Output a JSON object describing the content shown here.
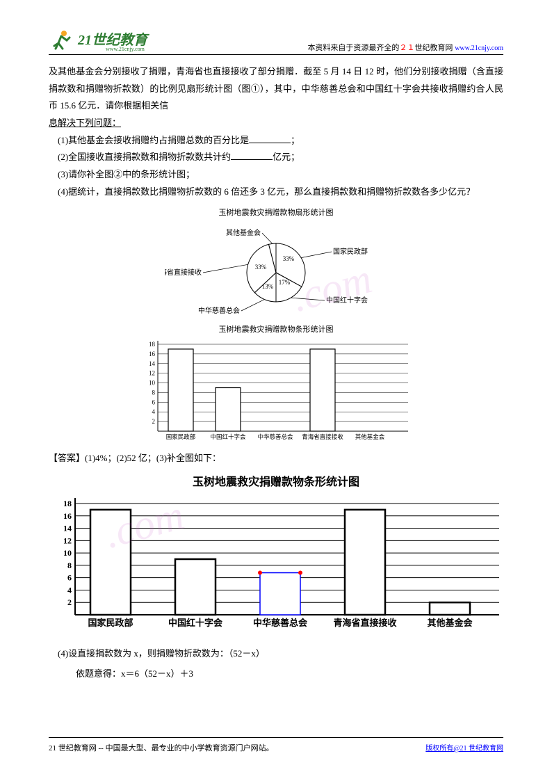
{
  "header": {
    "logo_main": "21世纪教育",
    "logo_sub": "www.21cnjy.com",
    "right_prefix": "本资料来自于资源最齐全的",
    "right_red": "２１",
    "right_suffix": "世纪教育网",
    "right_url": "www.21cnjy.com"
  },
  "para1": "及其他基金会分别接收了捐赠，青海省也直接接收了部分捐赠．截至 5 月 14 日 12 时，他们分别接收捐赠（含直接捐款数和捐赠物折款数）的比例见扇形统计图（图①），其中，中华慈善总会和中国红十字会共接收捐赠约合人民币 15.6 亿元．请你根据相关信",
  "para1b": "息解决下列问题：",
  "q1_a": "(1)其他基金会接收捐赠约占捐赠总数的百分比是",
  "q1_b": "；",
  "q2_a": "(2)全国接收直接捐款数和捐物折款数共计约",
  "q2_b": "亿元；",
  "q3": "(3)请你补全图②中的条形统计图；",
  "q4": "(4)据统计，直接捐款数比捐赠物折款数的 6 倍还多 3 亿元，那么直接捐款数和捐赠物折款数各多少亿元？",
  "pie": {
    "title": "玉树地震救灾捐赠款物扇形统计图",
    "labels": {
      "other": "其他基金会",
      "qinghai": "青海省直接接收",
      "zhonghua": "中华慈善总会",
      "redcross": "中国红十字会",
      "guojia": "国家民政部"
    },
    "values": {
      "qinghai": "33%",
      "guojia": "33%",
      "redcross": "17%",
      "zhonghua": "13%"
    },
    "colors": {
      "fill": "#ffffff",
      "stroke": "#000000"
    }
  },
  "bar1": {
    "title": "玉树地震救灾捐赠款物条形统计图",
    "ylabels": [
      "2",
      "4",
      "6",
      "8",
      "10",
      "12",
      "14",
      "16",
      "18"
    ],
    "xlabels": [
      "国家民政部",
      "中国红十字会",
      "中华慈善总会",
      "青海省直接接收",
      "其他基金会"
    ],
    "values": [
      17,
      9,
      null,
      17,
      null
    ],
    "ymax": 18,
    "bar_color": "#ffffff",
    "bar_stroke": "#000000",
    "grid_color": "#000000"
  },
  "answer": "【答案】(1)4%；(2)52 亿；(3)补全图如下：",
  "bar2": {
    "title": "玉树地震救灾捐赠款物条形统计图",
    "ylabels": [
      "2",
      "4",
      "6",
      "8",
      "10",
      "12",
      "14",
      "16",
      "18"
    ],
    "xlabels": [
      "国家民政部",
      "中国红十字会",
      "中华慈善总会",
      "青海省直接接收",
      "其他基金会"
    ],
    "values": [
      17,
      9,
      6.8,
      17,
      2
    ],
    "ymax": 18,
    "added_index": 2,
    "added_color": "#0000ff",
    "marker_color": "#ff0000",
    "bar_color": "#ffffff",
    "bar_stroke": "#000000"
  },
  "sol1": "(4)设直接捐款数为 x，则捐赠物折款数为：（52－x）",
  "sol2": "依题意得：x＝6（52－x）＋3",
  "footer": {
    "left": "21 世纪教育网 -- 中国最大型、最专业的中小学教育资源门户网站。",
    "right": "版权所有@21 世纪教育网"
  },
  "watermark": ".com"
}
